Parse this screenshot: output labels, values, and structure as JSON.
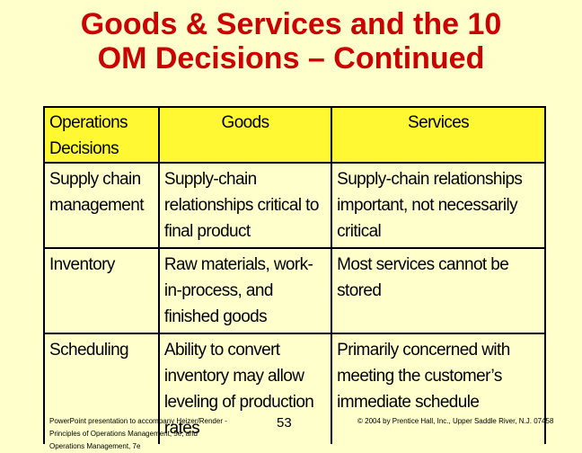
{
  "slide": {
    "title_line1": "Goods & Services and the 10",
    "title_line2": "OM Decisions – Continued"
  },
  "table": {
    "headers": [
      "Operations Decisions",
      "Goods",
      "Services"
    ],
    "rows": [
      [
        "Supply chain management",
        "Supply-chain relationships critical to final product",
        "Supply-chain relationships important, not necessarily critical"
      ],
      [
        "Inventory",
        "Raw materials, work-in-process, and finished goods",
        "Most services cannot be stored"
      ],
      [
        "Scheduling",
        "Ability to convert inventory may allow leveling of production rates",
        "Primarily concerned with meeting the customer’s immediate schedule"
      ]
    ]
  },
  "footer": {
    "left": "PowerPoint presentation to accompany Heizer/Render - Principles of Operations Management, 5e, and Operations Management, 7e",
    "page": "53",
    "right": "© 2004 by Prentice Hall, Inc., Upper Saddle River, N.J. 07458"
  },
  "colors": {
    "title": "#CC0000",
    "background": "#FFFFCC",
    "header_fill": "#FFF833"
  }
}
